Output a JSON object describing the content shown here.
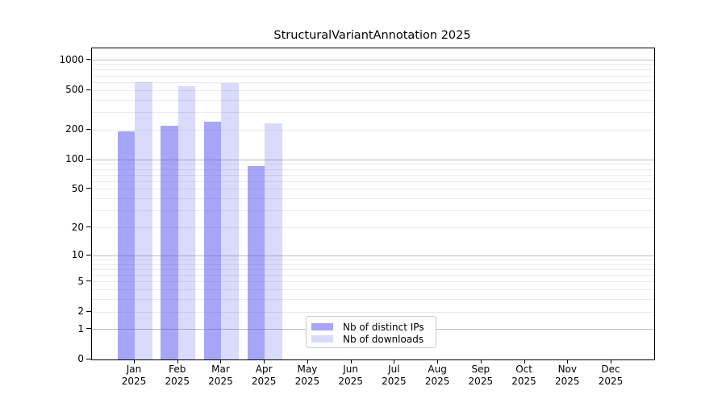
{
  "title": "StructuralVariantAnnotation 2025",
  "colors": {
    "bar_distinct_ips": "#a6a6f7",
    "bar_distinct_ips_rgba": "rgba(85,85,240,0.52)",
    "bar_downloads": "#d9d9fb",
    "bar_downloads_rgba": "rgba(85,85,240,0.22)",
    "grid_major": "#bcbcbc",
    "grid_minor": "#eaeaea",
    "axis": "#000000",
    "legend_border": "#cccccc",
    "background": "#ffffff"
  },
  "chart_data": {
    "type": "bar",
    "title": "StructuralVariantAnnotation 2025",
    "categories": [
      "Jan",
      "Feb",
      "Mar",
      "Apr",
      "May",
      "Jun",
      "Jul",
      "Aug",
      "Sep",
      "Oct",
      "Nov",
      "Dec"
    ],
    "x_year_label": "2025",
    "series": [
      {
        "name": "Nb of distinct IPs",
        "values": [
          195,
          220,
          242,
          86,
          null,
          null,
          null,
          null,
          null,
          null,
          null,
          null
        ]
      },
      {
        "name": "Nb of downloads",
        "values": [
          610,
          548,
          597,
          234,
          null,
          null,
          null,
          null,
          null,
          null,
          null,
          null
        ]
      }
    ],
    "xlabel": "",
    "ylabel": "",
    "yticks": [
      0,
      1,
      2,
      5,
      10,
      20,
      50,
      100,
      200,
      500,
      1000
    ],
    "yscale": "log10(1+y)",
    "ylim": [
      0,
      1325
    ],
    "grid": true,
    "legend_position": "lower-center-inside"
  }
}
